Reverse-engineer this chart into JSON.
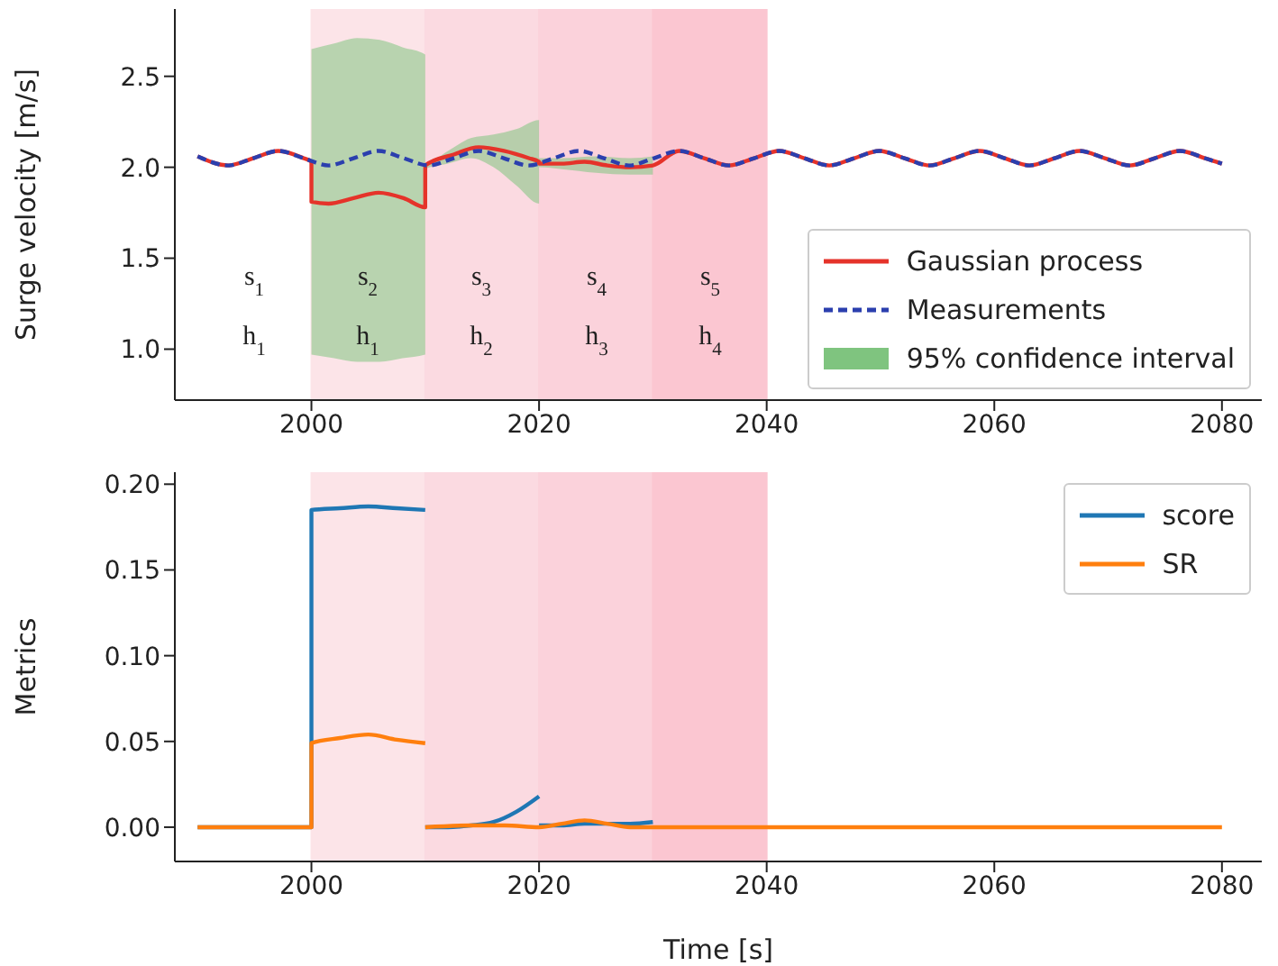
{
  "chart_data": [
    {
      "type": "line",
      "ylabel": "Surge velocity [m/s]",
      "xlim": [
        1988,
        2083.5
      ],
      "ylim": [
        0.72,
        2.87
      ],
      "xticks": [
        2000,
        2020,
        2040,
        2060,
        2080
      ],
      "yticks": [
        {
          "value": 1,
          "label": "1.0"
        },
        {
          "value": 1.5,
          "label": "1.5"
        },
        {
          "value": 2,
          "label": "2.0"
        },
        {
          "value": 2.5,
          "label": "2.5"
        }
      ],
      "legend": "bottom right",
      "grid": false,
      "bands": [
        {
          "axis": "x",
          "from": 2000,
          "to": 2010,
          "color": "#fce4e8"
        },
        {
          "axis": "x",
          "from": 2010,
          "to": 2020,
          "color": "#fbdae1"
        },
        {
          "axis": "x",
          "from": 2020,
          "to": 2030,
          "color": "#fbd2db"
        },
        {
          "axis": "x",
          "from": 2030,
          "to": 2040,
          "color": "#fbc6d1"
        }
      ],
      "annotations": [
        "s$_{1}$",
        "h$_{1}$",
        "s$_{2}$",
        "h$_{1}$",
        "s$_{3}$",
        "h$_{2}$",
        "s$_{4}$",
        "h$_{3}$",
        "s$_{5}$",
        "h$_{4}$"
      ],
      "series": [
        {
          "name": "Gaussian process",
          "color": "#e5332a",
          "line_style": "solid",
          "x": [
            1990,
            1992.7,
            1994.9,
            1997.1,
            1999.3,
            2000,
            2000,
            2001.5,
            2003.7,
            2005.9,
            2008.1,
            2010,
            2010,
            2012.5,
            2014.7,
            2016.9,
            2019.1,
            2020,
            2020,
            2022,
            2024,
            2026,
            2028,
            2030,
            2032.3,
            2034.5,
            2036.7,
            2038.9,
            2041.1,
            2043.3,
            2045.5,
            2047.7,
            2049.9,
            2052.1,
            2054.3,
            2056.5,
            2058.7,
            2060.9,
            2063.1,
            2065.3,
            2067.5,
            2069.7,
            2071.9,
            2074.1,
            2076.3,
            2078.5,
            2080
          ],
          "values": [
            2.06,
            2.01,
            2.05,
            2.09,
            2.05,
            2.03,
            1.81,
            1.8,
            1.83,
            1.86,
            1.83,
            1.78,
            2.01,
            2.07,
            2.11,
            2.09,
            2.05,
            2.03,
            2.02,
            2.02,
            2.03,
            2.01,
            2.0,
            2.01,
            2.09,
            2.05,
            2.01,
            2.05,
            2.09,
            2.05,
            2.01,
            2.05,
            2.09,
            2.05,
            2.01,
            2.05,
            2.09,
            2.05,
            2.01,
            2.05,
            2.09,
            2.05,
            2.01,
            2.05,
            2.09,
            2.05,
            2.02
          ]
        },
        {
          "name": "Measurements",
          "color": "#2b3fae",
          "line_style": "dashed",
          "x": [
            1990,
            1992.7,
            1994.9,
            1997.1,
            1999.3,
            2001.5,
            2003.7,
            2005.9,
            2008.1,
            2010.3,
            2012.5,
            2014.7,
            2016.9,
            2019.1,
            2021.3,
            2023.5,
            2025.7,
            2027.9,
            2030.1,
            2032.3,
            2034.5,
            2036.7,
            2038.9,
            2041.1,
            2043.3,
            2045.5,
            2047.7,
            2049.9,
            2052.1,
            2054.3,
            2056.5,
            2058.7,
            2060.9,
            2063.1,
            2065.3,
            2067.5,
            2069.7,
            2071.9,
            2074.1,
            2076.3,
            2078.5,
            2080
          ],
          "values": [
            2.06,
            2.01,
            2.05,
            2.09,
            2.05,
            2.01,
            2.05,
            2.09,
            2.05,
            2.01,
            2.05,
            2.09,
            2.05,
            2.01,
            2.05,
            2.09,
            2.05,
            2.01,
            2.05,
            2.09,
            2.05,
            2.01,
            2.05,
            2.09,
            2.05,
            2.01,
            2.05,
            2.09,
            2.05,
            2.01,
            2.05,
            2.09,
            2.05,
            2.01,
            2.05,
            2.09,
            2.05,
            2.01,
            2.05,
            2.09,
            2.05,
            2.02
          ]
        },
        {
          "name": "95% confidence interval",
          "type": "area",
          "color": "#7fc47f",
          "x": [
            2000,
            2002,
            2004,
            2006,
            2008,
            2010,
            2010,
            2012,
            2014,
            2016,
            2018,
            2020,
            2020,
            2022,
            2025,
            2028,
            2030
          ],
          "values": [
            null,
            null,
            null,
            null,
            null,
            null,
            null,
            null,
            null,
            null,
            null,
            null,
            null,
            null,
            null,
            null,
            null
          ],
          "lower": [
            0.97,
            0.95,
            0.93,
            0.93,
            0.95,
            0.97,
            1.99,
            2.02,
            2.05,
            2.0,
            1.9,
            1.8,
            2.0,
            1.99,
            1.97,
            1.96,
            1.96
          ],
          "upper": [
            2.65,
            2.68,
            2.71,
            2.7,
            2.66,
            2.62,
            2.02,
            2.09,
            2.16,
            2.18,
            2.21,
            2.26,
            2.05,
            2.05,
            2.06,
            2.05,
            2.06
          ]
        }
      ]
    },
    {
      "type": "line",
      "xlabel": "Time [s]",
      "ylabel": "Metrics",
      "xlim": [
        1988,
        2083.5
      ],
      "ylim": [
        -0.02,
        0.207
      ],
      "xticks": [
        2000,
        2020,
        2040,
        2060,
        2080
      ],
      "yticks": [
        {
          "value": 0,
          "label": "0.00"
        },
        {
          "value": 0.05,
          "label": "0.05"
        },
        {
          "value": 0.1,
          "label": "0.10"
        },
        {
          "value": 0.15,
          "label": "0.15"
        },
        {
          "value": 0.2,
          "label": "0.20"
        }
      ],
      "legend": "top right",
      "grid": false,
      "bands": [
        {
          "axis": "x",
          "from": 2000,
          "to": 2010,
          "color": "#fce4e8"
        },
        {
          "axis": "x",
          "from": 2010,
          "to": 2020,
          "color": "#fbdae1"
        },
        {
          "axis": "x",
          "from": 2020,
          "to": 2030,
          "color": "#fbd2db"
        },
        {
          "axis": "x",
          "from": 2030,
          "to": 2040,
          "color": "#fbc6d1"
        }
      ],
      "series": [
        {
          "name": "score",
          "color": "#1f77b4",
          "x": [
            1990,
            2000,
            2000,
            2002.5,
            2005,
            2007.5,
            2010
          ],
          "values": [
            0,
            0,
            0.185,
            0.186,
            0.187,
            0.186,
            0.185
          ]
        },
        {
          "color": "#1f77b4",
          "x": [
            2010,
            2012,
            2014,
            2016,
            2018,
            2020
          ],
          "values": [
            0,
            0,
            0.001,
            0.003,
            0.009,
            0.018
          ]
        },
        {
          "color": "#1f77b4",
          "x": [
            2020,
            2022,
            2024,
            2026,
            2028,
            2030
          ],
          "values": [
            0.001,
            0.001,
            0.002,
            0.002,
            0.002,
            0.003
          ]
        },
        {
          "name": "SR",
          "color": "#ff7f0e",
          "x": [
            1990,
            2000,
            2000,
            2002.5,
            2005,
            2007.5,
            2010
          ],
          "values": [
            0,
            0,
            0.049,
            0.052,
            0.054,
            0.051,
            0.049
          ]
        },
        {
          "color": "#ff7f0e",
          "x": [
            2010,
            2014,
            2017,
            2020,
            2022,
            2024,
            2026,
            2028,
            2030,
            2080
          ],
          "values": [
            0,
            0.001,
            0.001,
            0,
            0.002,
            0.004,
            0.002,
            0,
            0,
            0
          ]
        }
      ]
    }
  ]
}
